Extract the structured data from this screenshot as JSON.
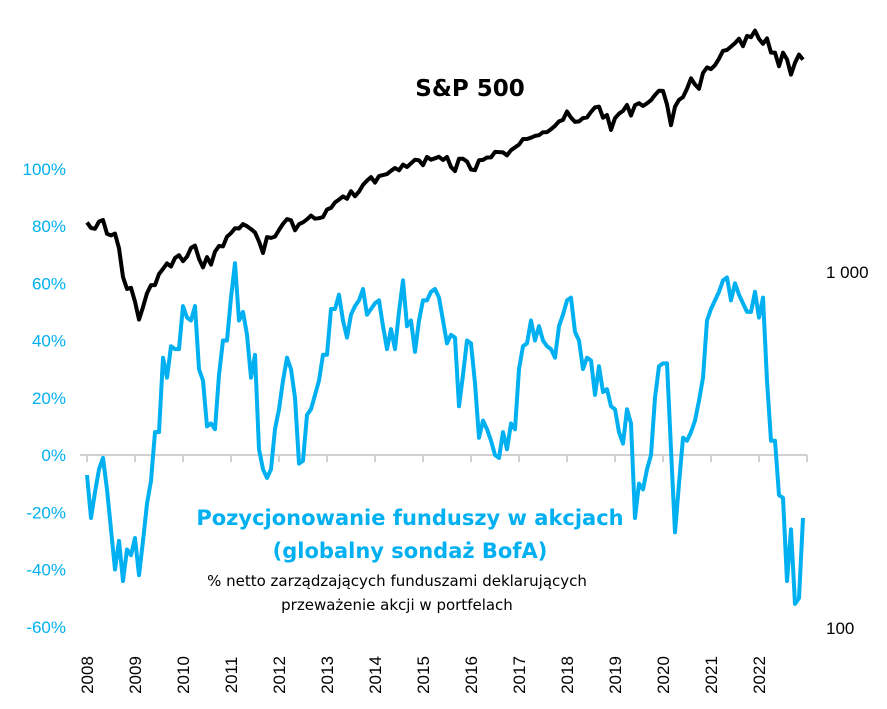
{
  "chart_data": {
    "type": "line",
    "left_axis": {
      "ticks": [
        "100%",
        "80%",
        "60%",
        "40%",
        "20%",
        "0%",
        "-20%",
        "-40%",
        "-60%"
      ],
      "range": [
        -60,
        100
      ],
      "unit": "%",
      "color": "#00B0F0"
    },
    "right_axis": {
      "ticks": [
        "1 000",
        "100"
      ],
      "range_log": [
        100,
        1000
      ],
      "scale": "log"
    },
    "x_ticks": [
      "2008",
      "2009",
      "2010",
      "2011",
      "2012",
      "2013",
      "2014",
      "2015",
      "2016",
      "2017",
      "2018",
      "2019",
      "2020",
      "2021",
      "2022"
    ],
    "grid": false,
    "annotations": {
      "sp_label": "S&P 500",
      "blue_title_1": "Pozycjonowanie funduszy w akcjach",
      "blue_title_2": "(globalny sondaż BofA)",
      "subtitle_1": "% netto zarządzających funduszami deklarujących",
      "subtitle_2": "przeważenie akcji w portfelach"
    },
    "x": [
      "2008-01",
      "2008-02",
      "2008-03",
      "2008-04",
      "2008-05",
      "2008-06",
      "2008-07",
      "2008-08",
      "2008-09",
      "2008-10",
      "2008-11",
      "2008-12",
      "2009-01",
      "2009-02",
      "2009-03",
      "2009-04",
      "2009-05",
      "2009-06",
      "2009-07",
      "2009-08",
      "2009-09",
      "2009-10",
      "2009-11",
      "2009-12",
      "2010-01",
      "2010-02",
      "2010-03",
      "2010-04",
      "2010-05",
      "2010-06",
      "2010-07",
      "2010-08",
      "2010-09",
      "2010-10",
      "2010-11",
      "2010-12",
      "2011-01",
      "2011-02",
      "2011-03",
      "2011-04",
      "2011-05",
      "2011-06",
      "2011-07",
      "2011-08",
      "2011-09",
      "2011-10",
      "2011-11",
      "2011-12",
      "2012-01",
      "2012-02",
      "2012-03",
      "2012-04",
      "2012-05",
      "2012-06",
      "2012-07",
      "2012-08",
      "2012-09",
      "2012-10",
      "2012-11",
      "2012-12",
      "2013-01",
      "2013-02",
      "2013-03",
      "2013-04",
      "2013-05",
      "2013-06",
      "2013-07",
      "2013-08",
      "2013-09",
      "2013-10",
      "2013-11",
      "2013-12",
      "2014-01",
      "2014-02",
      "2014-03",
      "2014-04",
      "2014-05",
      "2014-06",
      "2014-07",
      "2014-08",
      "2014-09",
      "2014-10",
      "2014-11",
      "2014-12",
      "2015-01",
      "2015-02",
      "2015-03",
      "2015-04",
      "2015-05",
      "2015-06",
      "2015-07",
      "2015-08",
      "2015-09",
      "2015-10",
      "2015-11",
      "2015-12",
      "2016-01",
      "2016-02",
      "2016-03",
      "2016-04",
      "2016-05",
      "2016-06",
      "2016-07",
      "2016-08",
      "2016-09",
      "2016-10",
      "2016-11",
      "2016-12",
      "2017-01",
      "2017-02",
      "2017-03",
      "2017-04",
      "2017-05",
      "2017-06",
      "2017-07",
      "2017-08",
      "2017-09",
      "2017-10",
      "2017-11",
      "2017-12",
      "2018-01",
      "2018-02",
      "2018-03",
      "2018-04",
      "2018-05",
      "2018-06",
      "2018-07",
      "2018-08",
      "2018-09",
      "2018-10",
      "2018-11",
      "2018-12",
      "2019-01",
      "2019-02",
      "2019-03",
      "2019-04",
      "2019-05",
      "2019-06",
      "2019-07",
      "2019-08",
      "2019-09",
      "2019-10",
      "2019-11",
      "2019-12",
      "2020-01",
      "2020-02",
      "2020-03",
      "2020-04",
      "2020-05",
      "2020-06",
      "2020-07",
      "2020-08",
      "2020-09",
      "2020-10",
      "2020-11",
      "2020-12",
      "2021-01",
      "2021-02",
      "2021-03",
      "2021-04",
      "2021-05",
      "2021-06",
      "2021-07",
      "2021-08",
      "2021-09",
      "2021-10",
      "2021-11",
      "2021-12",
      "2022-01",
      "2022-02",
      "2022-03",
      "2022-04",
      "2022-05",
      "2022-06",
      "2022-07",
      "2022-08",
      "2022-09",
      "2022-10",
      "2022-11",
      "2022-12"
    ],
    "series": [
      {
        "name": "S&P 500",
        "axis": "right",
        "color": "#000000",
        "values": [
          1378,
          1330,
          1322,
          1385,
          1400,
          1280,
          1267,
          1282,
          1166,
          968,
          896,
          903,
          825,
          735,
          797,
          872,
          919,
          919,
          987,
          1020,
          1057,
          1036,
          1095,
          1115,
          1073,
          1104,
          1169,
          1186,
          1089,
          1030,
          1101,
          1049,
          1141,
          1183,
          1180,
          1257,
          1286,
          1327,
          1325,
          1363,
          1345,
          1320,
          1292,
          1218,
          1131,
          1253,
          1247,
          1257,
          1312,
          1365,
          1408,
          1397,
          1310,
          1362,
          1379,
          1406,
          1440,
          1412,
          1416,
          1426,
          1498,
          1514,
          1569,
          1597,
          1631,
          1606,
          1686,
          1633,
          1682,
          1757,
          1806,
          1848,
          1783,
          1859,
          1872,
          1884,
          1924,
          1960,
          1931,
          2003,
          1972,
          2018,
          2068,
          2059,
          1995,
          2105,
          2068,
          2086,
          2107,
          2063,
          2104,
          1972,
          1920,
          2079,
          2080,
          2044,
          1940,
          1932,
          2060,
          2065,
          2097,
          2099,
          2174,
          2171,
          2168,
          2126,
          2199,
          2239,
          2279,
          2364,
          2363,
          2384,
          2412,
          2423,
          2470,
          2472,
          2519,
          2575,
          2648,
          2674,
          2824,
          2714,
          2641,
          2648,
          2705,
          2718,
          2816,
          2902,
          2914,
          2712,
          2760,
          2507,
          2704,
          2784,
          2834,
          2946,
          2752,
          2942,
          2980,
          2926,
          2977,
          3038,
          3141,
          3231,
          3226,
          2954,
          2585,
          2912,
          3044,
          3100,
          3271,
          3500,
          3363,
          3270,
          3622,
          3756,
          3714,
          3811,
          3973,
          4181,
          4204,
          4298,
          4395,
          4523,
          4308,
          4605,
          4567,
          4766,
          4516,
          4374,
          4530,
          4132,
          4132,
          3785,
          4130,
          3955,
          3586,
          3872,
          4080,
          3950
        ]
      },
      {
        "name": "Pozycjonowanie funduszy w akcjach (globalny sondaż BofA)",
        "axis": "left",
        "color": "#00B0F0",
        "values": [
          -7,
          -22,
          -13,
          -5,
          -1,
          -12,
          -26,
          -40,
          -30,
          -44,
          -33,
          -35,
          -29,
          -42,
          -30,
          -17,
          -9,
          8,
          8,
          34,
          27,
          38,
          37,
          37,
          52,
          48,
          47,
          52,
          30,
          26,
          10,
          11,
          9,
          28,
          40,
          40,
          55,
          67,
          47,
          50,
          42,
          27,
          35,
          2,
          -5,
          -8,
          -5,
          9,
          16,
          26,
          34,
          30,
          20,
          -3,
          -2,
          14,
          16,
          21,
          26,
          35,
          35,
          51,
          51,
          56,
          47,
          41,
          49,
          52,
          54,
          58,
          49,
          51,
          53,
          54,
          45,
          37,
          44,
          37,
          50,
          61,
          45,
          47,
          36,
          47,
          54,
          54,
          57,
          58,
          55,
          47,
          39,
          42,
          41,
          17,
          28,
          40,
          39,
          25,
          6,
          12,
          9,
          5,
          0,
          -1,
          8,
          2,
          11,
          9,
          30,
          38,
          39,
          47,
          40,
          45,
          40,
          38,
          37,
          34,
          45,
          49,
          54,
          55,
          43,
          40,
          30,
          34,
          33,
          21,
          31,
          22,
          23,
          17,
          16,
          8,
          4,
          16,
          11,
          -22,
          -10,
          -12,
          -5,
          0,
          20,
          31,
          32,
          32,
          2,
          -27,
          -10,
          6,
          5,
          8,
          12,
          19,
          27,
          47,
          51,
          54,
          57,
          61,
          62,
          54,
          60,
          56,
          53,
          50,
          50,
          57,
          48,
          55,
          26,
          5,
          5,
          -14,
          -15,
          -44,
          -26,
          -52,
          -50,
          -22
        ]
      }
    ]
  }
}
